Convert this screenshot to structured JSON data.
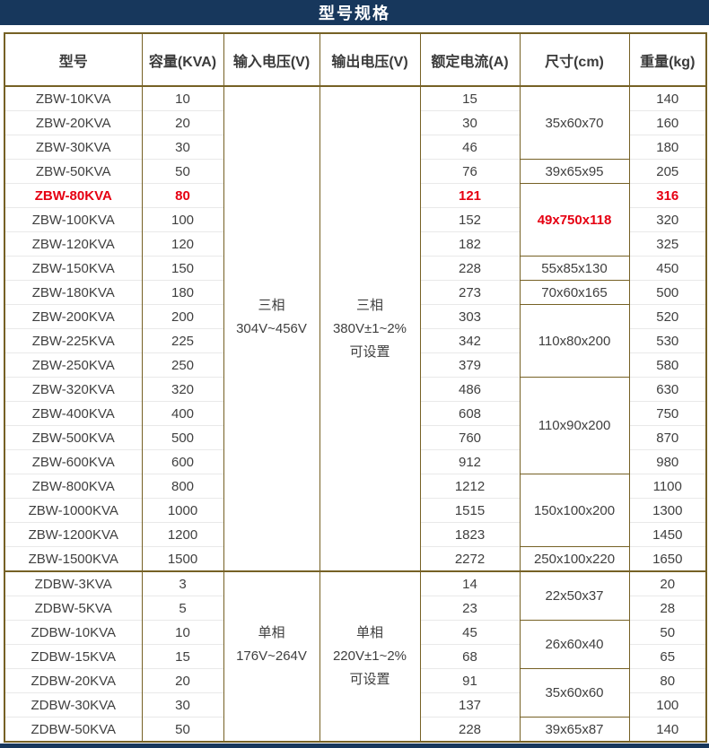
{
  "title": "型号规格",
  "colors": {
    "title_bar_bg": "#17375c",
    "title_text": "#ffffff",
    "table_border": "#766125",
    "row_separator": "#e9e9e9",
    "body_text": "#404040",
    "highlight_red": "#e60012"
  },
  "table": {
    "headers": [
      "型号",
      "容量(KVA)",
      "输入电压(V)",
      "输出电压(V)",
      "额定电流(A)",
      "尺寸(cm)",
      "重量(kg)"
    ],
    "sections": [
      {
        "input_voltage": [
          "三相",
          "304V~456V"
        ],
        "output_voltage": [
          "三相",
          "380V±1~2%",
          "可设置"
        ],
        "rows": [
          {
            "model": "ZBW-10KVA",
            "capacity": "10",
            "current": "15",
            "weight": "140"
          },
          {
            "model": "ZBW-20KVA",
            "capacity": "20",
            "current": "30",
            "weight": "160"
          },
          {
            "model": "ZBW-30KVA",
            "capacity": "30",
            "current": "46",
            "weight": "180"
          },
          {
            "model": "ZBW-50KVA",
            "capacity": "50",
            "current": "76",
            "weight": "205"
          },
          {
            "model": "ZBW-80KVA",
            "capacity": "80",
            "current": "121",
            "weight": "316",
            "highlight": true
          },
          {
            "model": "ZBW-100KVA",
            "capacity": "100",
            "current": "152",
            "weight": "320"
          },
          {
            "model": "ZBW-120KVA",
            "capacity": "120",
            "current": "182",
            "weight": "325"
          },
          {
            "model": "ZBW-150KVA",
            "capacity": "150",
            "current": "228",
            "weight": "450"
          },
          {
            "model": "ZBW-180KVA",
            "capacity": "180",
            "current": "273",
            "weight": "500"
          },
          {
            "model": "ZBW-200KVA",
            "capacity": "200",
            "current": "303",
            "weight": "520"
          },
          {
            "model": "ZBW-225KVA",
            "capacity": "225",
            "current": "342",
            "weight": "530"
          },
          {
            "model": "ZBW-250KVA",
            "capacity": "250",
            "current": "379",
            "weight": "580"
          },
          {
            "model": "ZBW-320KVA",
            "capacity": "320",
            "current": "486",
            "weight": "630"
          },
          {
            "model": "ZBW-400KVA",
            "capacity": "400",
            "current": "608",
            "weight": "750"
          },
          {
            "model": "ZBW-500KVA",
            "capacity": "500",
            "current": "760",
            "weight": "870"
          },
          {
            "model": "ZBW-600KVA",
            "capacity": "600",
            "current": "912",
            "weight": "980"
          },
          {
            "model": "ZBW-800KVA",
            "capacity": "800",
            "current": "1212",
            "weight": "1100"
          },
          {
            "model": "ZBW-1000KVA",
            "capacity": "1000",
            "current": "1515",
            "weight": "1300"
          },
          {
            "model": "ZBW-1200KVA",
            "capacity": "1200",
            "current": "1823",
            "weight": "1450"
          },
          {
            "model": "ZBW-1500KVA",
            "capacity": "1500",
            "current": "2272",
            "weight": "1650"
          }
        ],
        "sizes": [
          {
            "value": "35x60x70",
            "span": 3
          },
          {
            "value": "39x65x95",
            "span": 1
          },
          {
            "value": "49x750x118",
            "span": 3,
            "highlight": true
          },
          {
            "value": "55x85x130",
            "span": 1
          },
          {
            "value": "70x60x165",
            "span": 1
          },
          {
            "value": "110x80x200",
            "span": 3
          },
          {
            "value": "110x90x200",
            "span": 4
          },
          {
            "value": "150x100x200",
            "span": 3
          },
          {
            "value": "250x100x220",
            "span": 1
          }
        ]
      },
      {
        "input_voltage": [
          "单相",
          "176V~264V"
        ],
        "output_voltage": [
          "单相",
          "220V±1~2%",
          "可设置"
        ],
        "rows": [
          {
            "model": "ZDBW-3KVA",
            "capacity": "3",
            "current": "14",
            "weight": "20"
          },
          {
            "model": "ZDBW-5KVA",
            "capacity": "5",
            "current": "23",
            "weight": "28"
          },
          {
            "model": "ZDBW-10KVA",
            "capacity": "10",
            "current": "45",
            "weight": "50"
          },
          {
            "model": "ZDBW-15KVA",
            "capacity": "15",
            "current": "68",
            "weight": "65"
          },
          {
            "model": "ZDBW-20KVA",
            "capacity": "20",
            "current": "91",
            "weight": "80"
          },
          {
            "model": "ZDBW-30KVA",
            "capacity": "30",
            "current": "137",
            "weight": "100"
          },
          {
            "model": "ZDBW-50KVA",
            "capacity": "50",
            "current": "228",
            "weight": "140"
          }
        ],
        "sizes": [
          {
            "value": "22x50x37",
            "span": 2
          },
          {
            "value": "26x60x40",
            "span": 2
          },
          {
            "value": "35x60x60",
            "span": 2
          },
          {
            "value": "39x65x87",
            "span": 1
          }
        ]
      }
    ]
  }
}
